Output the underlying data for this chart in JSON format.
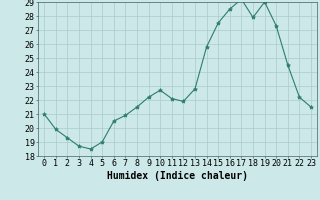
{
  "x": [
    0,
    1,
    2,
    3,
    4,
    5,
    6,
    7,
    8,
    9,
    10,
    11,
    12,
    13,
    14,
    15,
    16,
    17,
    18,
    19,
    20,
    21,
    22,
    23
  ],
  "y": [
    21.0,
    19.9,
    19.3,
    18.7,
    18.5,
    19.0,
    20.5,
    20.9,
    21.5,
    22.2,
    22.7,
    22.1,
    21.9,
    22.8,
    25.8,
    27.5,
    28.5,
    29.2,
    27.9,
    29.0,
    27.3,
    24.5,
    22.2,
    21.5
  ],
  "line_color": "#2e7d6e",
  "marker": "*",
  "marker_size": 3,
  "bg_color": "#cce8e8",
  "grid_color": "#aacccc",
  "xlabel": "Humidex (Indice chaleur)",
  "ylim": [
    18,
    29
  ],
  "xlim_min": -0.5,
  "xlim_max": 23.5,
  "yticks": [
    18,
    19,
    20,
    21,
    22,
    23,
    24,
    25,
    26,
    27,
    28,
    29
  ],
  "xticks": [
    0,
    1,
    2,
    3,
    4,
    5,
    6,
    7,
    8,
    9,
    10,
    11,
    12,
    13,
    14,
    15,
    16,
    17,
    18,
    19,
    20,
    21,
    22,
    23
  ],
  "xtick_labels": [
    "0",
    "1",
    "2",
    "3",
    "4",
    "5",
    "6",
    "7",
    "8",
    "9",
    "10",
    "11",
    "12",
    "13",
    "14",
    "15",
    "16",
    "17",
    "18",
    "19",
    "20",
    "21",
    "22",
    "23"
  ],
  "xlabel_fontsize": 7,
  "tick_fontsize": 6
}
